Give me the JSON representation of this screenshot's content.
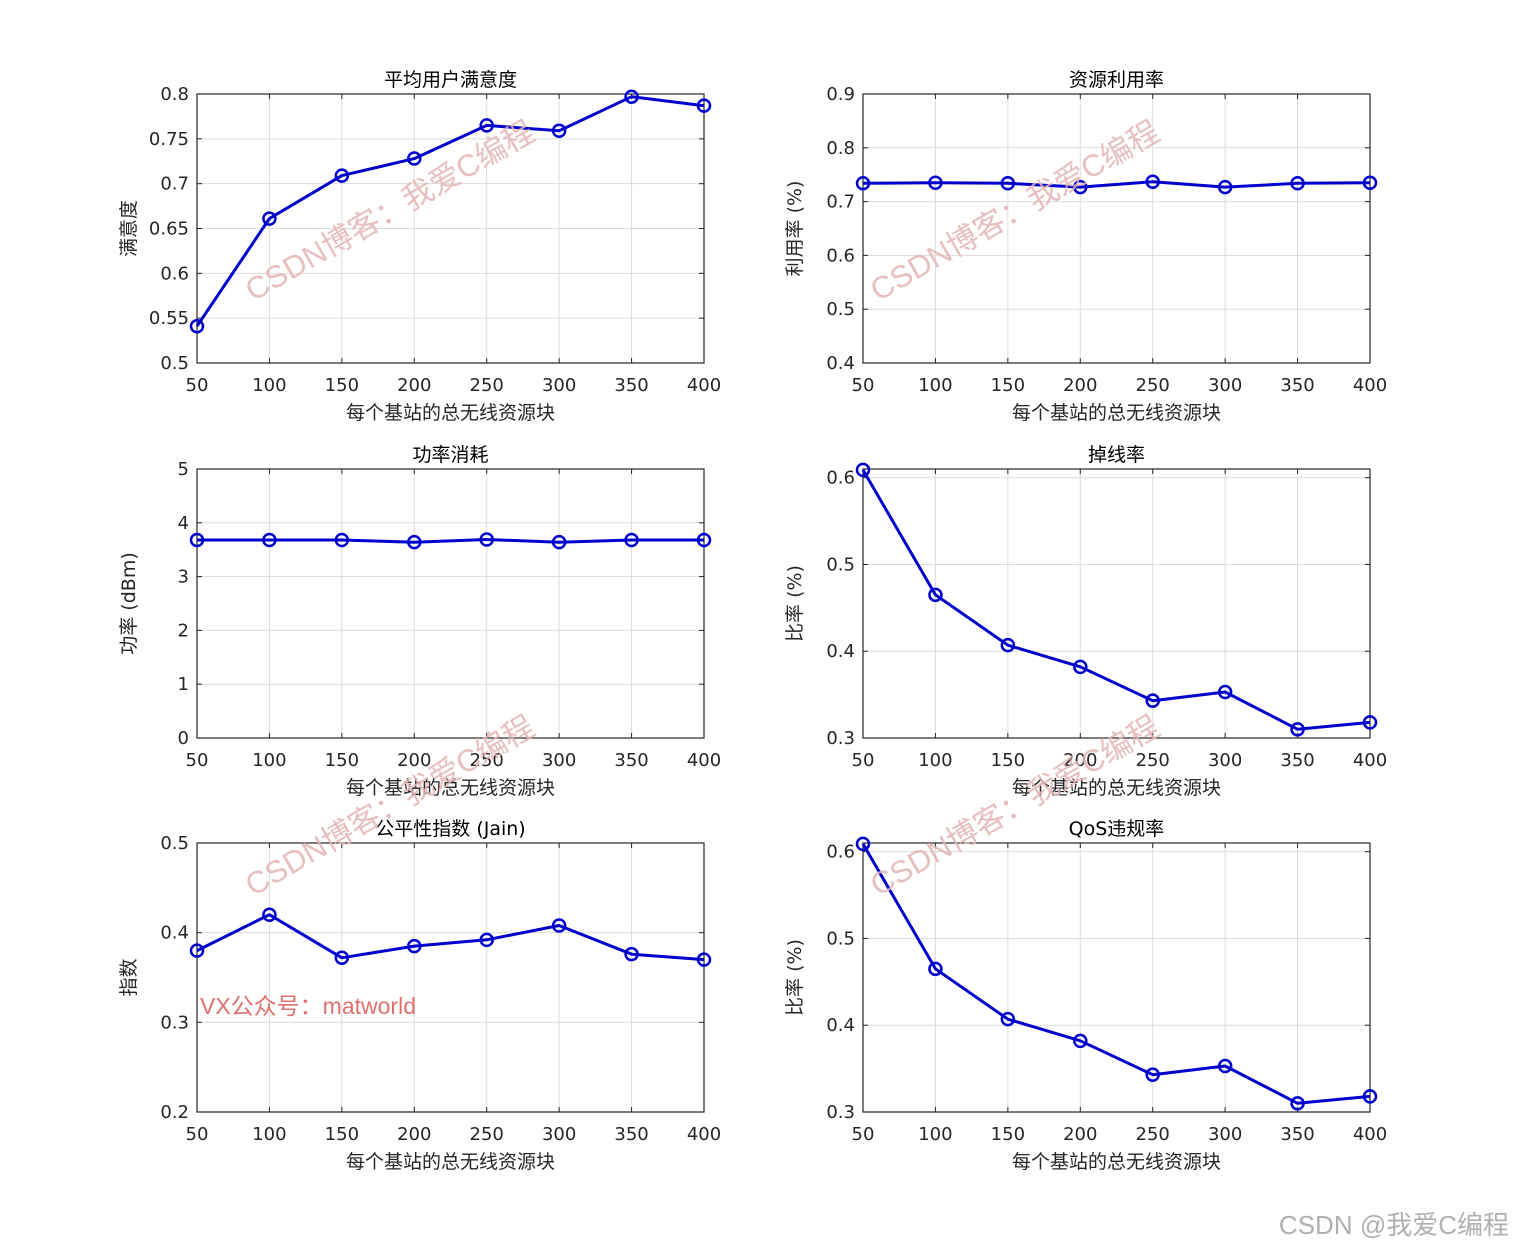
{
  "chart_data": [
    {
      "type": "line",
      "title": "平均用户满意度",
      "xlabel": "每个基站的总无线资源块",
      "ylabel": "满意度",
      "x": [
        50,
        100,
        150,
        200,
        250,
        300,
        350,
        400
      ],
      "series": [
        {
          "name": "满意度",
          "values": [
            0.541,
            0.661,
            0.709,
            0.728,
            0.765,
            0.759,
            0.797,
            0.787
          ]
        }
      ],
      "xlim": [
        50,
        400
      ],
      "ylim": [
        0.5,
        0.8
      ],
      "xticks": [
        "50",
        "100",
        "150",
        "200",
        "250",
        "300",
        "350",
        "400"
      ],
      "yticks": [
        "0.5",
        "0.55",
        "0.6",
        "0.65",
        "0.7",
        "0.75",
        "0.8"
      ],
      "grid": true,
      "color": "#0000cc"
    },
    {
      "type": "line",
      "title": "资源利用率",
      "xlabel": "每个基站的总无线资源块",
      "ylabel": "利用率 (%)",
      "x": [
        50,
        100,
        150,
        200,
        250,
        300,
        350,
        400
      ],
      "series": [
        {
          "name": "利用率",
          "values": [
            0.734,
            0.735,
            0.734,
            0.727,
            0.737,
            0.727,
            0.734,
            0.735
          ]
        }
      ],
      "xlim": [
        50,
        400
      ],
      "ylim": [
        0.4,
        0.9
      ],
      "xticks": [
        "50",
        "100",
        "150",
        "200",
        "250",
        "300",
        "350",
        "400"
      ],
      "yticks": [
        "0.4",
        "0.5",
        "0.6",
        "0.7",
        "0.8",
        "0.9"
      ],
      "grid": true,
      "color": "#0000cc"
    },
    {
      "type": "line",
      "title": "功率消耗",
      "xlabel": "每个基站的总无线资源块",
      "ylabel": "功率 (dBm)",
      "x": [
        50,
        100,
        150,
        200,
        250,
        300,
        350,
        400
      ],
      "series": [
        {
          "name": "功率",
          "values": [
            3.68,
            3.68,
            3.68,
            3.64,
            3.69,
            3.64,
            3.68,
            3.68
          ]
        }
      ],
      "xlim": [
        50,
        400
      ],
      "ylim": [
        0,
        5
      ],
      "xticks": [
        "50",
        "100",
        "150",
        "200",
        "250",
        "300",
        "350",
        "400"
      ],
      "yticks": [
        "0",
        "1",
        "2",
        "3",
        "4",
        "5"
      ],
      "grid": true,
      "color": "#0000cc"
    },
    {
      "type": "line",
      "title": "掉线率",
      "xlabel": "每个基站的总无线资源块",
      "ylabel": "比率 (%)",
      "x": [
        50,
        100,
        150,
        200,
        250,
        300,
        350,
        400
      ],
      "series": [
        {
          "name": "掉线率",
          "values": [
            0.609,
            0.465,
            0.407,
            0.382,
            0.343,
            0.353,
            0.31,
            0.318
          ]
        }
      ],
      "xlim": [
        50,
        400
      ],
      "ylim": [
        0.3,
        0.61
      ],
      "xticks": [
        "50",
        "100",
        "150",
        "200",
        "250",
        "300",
        "350",
        "400"
      ],
      "yticks": [
        "0.3",
        "0.4",
        "0.5",
        "0.6"
      ],
      "grid": true,
      "color": "#0000cc"
    },
    {
      "type": "line",
      "title": "公平性指数 (Jain)",
      "xlabel": "每个基站的总无线资源块",
      "ylabel": "指数",
      "x": [
        50,
        100,
        150,
        200,
        250,
        300,
        350,
        400
      ],
      "series": [
        {
          "name": "指数",
          "values": [
            0.38,
            0.42,
            0.372,
            0.385,
            0.392,
            0.408,
            0.376,
            0.37
          ]
        }
      ],
      "xlim": [
        50,
        400
      ],
      "ylim": [
        0.2,
        0.5
      ],
      "xticks": [
        "50",
        "100",
        "150",
        "200",
        "250",
        "300",
        "350",
        "400"
      ],
      "yticks": [
        "0.2",
        "0.3",
        "0.4",
        "0.5"
      ],
      "grid": true,
      "color": "#0000cc"
    },
    {
      "type": "line",
      "title": "QoS违规率",
      "xlabel": "每个基站的总无线资源块",
      "ylabel": "比率 (%)",
      "x": [
        50,
        100,
        150,
        200,
        250,
        300,
        350,
        400
      ],
      "series": [
        {
          "name": "QoS违规率",
          "values": [
            0.609,
            0.465,
            0.407,
            0.382,
            0.343,
            0.353,
            0.31,
            0.318
          ]
        }
      ],
      "xlim": [
        50,
        400
      ],
      "ylim": [
        0.3,
        0.61
      ],
      "xticks": [
        "50",
        "100",
        "150",
        "200",
        "250",
        "300",
        "350",
        "400"
      ],
      "yticks": [
        "0.3",
        "0.4",
        "0.5",
        "0.6"
      ],
      "grid": true,
      "color": "#0000cc"
    }
  ],
  "watermark_text": "CSDN博客：我爱C编程",
  "vx_text": "VX公众号：matworld",
  "footer_text": "CSDN @我爱C编程"
}
